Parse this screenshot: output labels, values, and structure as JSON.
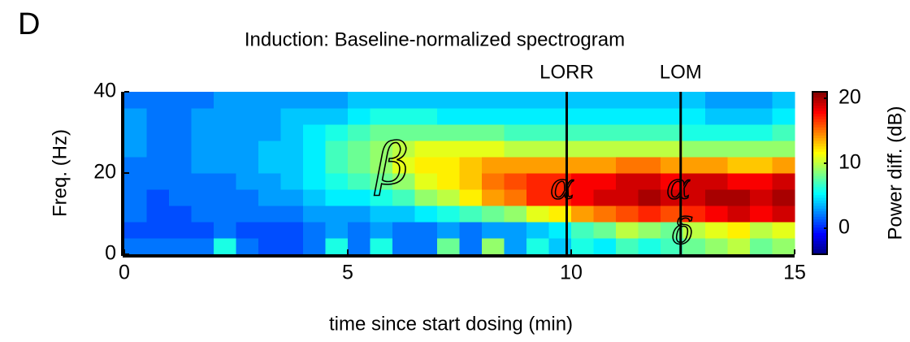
{
  "panel_label": "D",
  "chart_data": {
    "type": "heatmap",
    "title": "Induction: Baseline-normalized spectrogram",
    "xlabel": "time since start dosing (min)",
    "ylabel": "Freq. (Hz)",
    "colorbar_label": "Power diff. (dB)",
    "colormap": "jet",
    "clim": [
      -4,
      21
    ],
    "cticks": [
      0,
      10,
      20
    ],
    "xlim": [
      0,
      15
    ],
    "ylim": [
      0,
      40
    ],
    "xticks": [
      0,
      5,
      10,
      15
    ],
    "yticks": [
      0,
      20,
      40
    ],
    "xbins": [
      0,
      0.5,
      1,
      1.5,
      2,
      2.5,
      3,
      3.5,
      4,
      4.5,
      5,
      5.5,
      6,
      6.5,
      7,
      7.5,
      8,
      8.5,
      9,
      9.5,
      10,
      10.5,
      11,
      11.5,
      12,
      12.5,
      13,
      13.5,
      14,
      14.5,
      15
    ],
    "ybins": [
      0,
      4,
      8,
      12,
      16,
      20,
      24,
      28,
      32,
      36,
      40
    ],
    "z": [
      [
        2,
        2,
        2,
        2,
        6,
        2,
        1,
        1,
        2,
        6,
        2,
        6,
        2,
        2,
        8,
        2,
        9,
        3,
        6,
        4,
        6,
        5,
        7,
        6,
        7,
        8,
        9,
        10,
        8,
        9
      ],
      [
        1,
        1,
        1,
        1,
        2,
        1,
        1,
        1,
        2,
        3,
        2,
        3,
        2,
        2,
        3,
        2,
        3,
        3,
        4,
        5,
        7,
        8,
        10,
        9,
        8,
        10,
        11,
        12,
        10,
        11
      ],
      [
        2,
        1,
        1,
        2,
        2,
        2,
        2,
        2,
        3,
        3,
        3,
        4,
        4,
        5,
        6,
        7,
        8,
        9,
        11,
        12,
        14,
        15,
        16,
        17,
        16,
        17,
        18,
        19,
        18,
        19
      ],
      [
        2,
        1,
        2,
        2,
        2,
        2,
        3,
        3,
        4,
        5,
        5,
        6,
        7,
        9,
        10,
        12,
        14,
        15,
        17,
        17,
        18,
        19,
        19,
        20,
        19,
        19,
        20,
        20,
        19,
        20
      ],
      [
        2,
        2,
        2,
        2,
        2,
        3,
        3,
        4,
        5,
        6,
        7,
        8,
        9,
        11,
        12,
        13,
        15,
        16,
        17,
        17,
        18,
        18,
        19,
        19,
        18,
        19,
        19,
        18,
        18,
        19
      ],
      [
        2,
        2,
        2,
        3,
        3,
        3,
        4,
        4,
        5,
        7,
        8,
        9,
        11,
        12,
        12,
        13,
        14,
        14,
        14,
        14,
        14,
        14,
        15,
        15,
        14,
        14,
        14,
        13,
        13,
        14
      ],
      [
        3,
        2,
        2,
        3,
        3,
        3,
        4,
        4,
        5,
        7,
        8,
        9,
        10,
        11,
        11,
        11,
        11,
        10,
        10,
        10,
        10,
        10,
        10,
        10,
        10,
        9,
        9,
        9,
        9,
        9
      ],
      [
        3,
        2,
        2,
        3,
        3,
        3,
        3,
        4,
        5,
        6,
        7,
        8,
        8,
        8,
        8,
        8,
        8,
        7,
        7,
        7,
        7,
        7,
        7,
        7,
        7,
        6,
        6,
        6,
        6,
        7
      ],
      [
        3,
        2,
        2,
        3,
        3,
        3,
        3,
        4,
        4,
        4,
        5,
        6,
        6,
        6,
        5,
        5,
        5,
        5,
        5,
        5,
        5,
        5,
        5,
        5,
        5,
        5,
        4,
        4,
        4,
        5
      ],
      [
        2,
        2,
        2,
        2,
        3,
        3,
        3,
        3,
        3,
        3,
        4,
        4,
        4,
        4,
        4,
        4,
        4,
        4,
        4,
        4,
        4,
        4,
        4,
        4,
        4,
        4,
        3,
        3,
        3,
        4
      ]
    ],
    "markers": [
      {
        "label": "LORR",
        "x": 9.9
      },
      {
        "label": "LOM",
        "x": 12.45
      }
    ],
    "annotations": [
      {
        "text": "β",
        "x": 6.0,
        "y": 21
      },
      {
        "text": "α",
        "x": 9.8,
        "y": 16
      },
      {
        "text": "α",
        "x": 12.4,
        "y": 16
      },
      {
        "text": "δ",
        "x": 12.5,
        "y": 5
      }
    ]
  }
}
